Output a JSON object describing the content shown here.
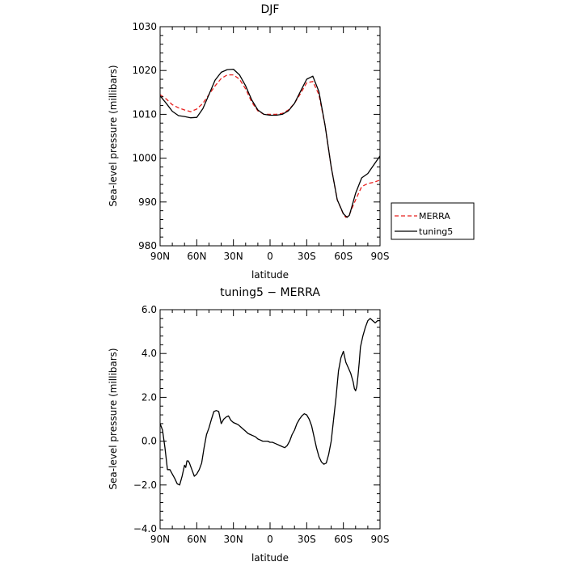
{
  "chart_data": [
    {
      "type": "line",
      "title": "DJF",
      "xlabel": "latitude",
      "ylabel": "Sea-level pressure (millibars)",
      "xlim": [
        90,
        -90
      ],
      "ylim": [
        980,
        1030
      ],
      "x_ticks": [
        90,
        60,
        30,
        0,
        -30,
        -60,
        -90
      ],
      "x_tick_labels": [
        "90N",
        "60N",
        "30N",
        "0",
        "30S",
        "60S",
        "90S"
      ],
      "y_ticks": [
        980,
        990,
        1000,
        1010,
        1020,
        1030
      ],
      "y_tick_labels": [
        "980",
        "990",
        "1000",
        "1010",
        "1020",
        "1030"
      ],
      "grid": false,
      "legend": "right",
      "series": [
        {
          "name": "MERRA",
          "color": "#e8201e",
          "dash": "dashed",
          "x": [
            90,
            85,
            80,
            75,
            70,
            65,
            60,
            55,
            50,
            45,
            40,
            35,
            30,
            25,
            20,
            15,
            10,
            5,
            0,
            -5,
            -10,
            -15,
            -20,
            -25,
            -30,
            -35,
            -40,
            -45,
            -50,
            -55,
            -60,
            -62,
            -65,
            -70,
            -75,
            -80,
            -85,
            -90
          ],
          "y": [
            1014.5,
            1013.5,
            1012.2,
            1011.5,
            1011,
            1010.6,
            1011.2,
            1012.5,
            1014.5,
            1016.5,
            1018.2,
            1019,
            1019,
            1018,
            1015.8,
            1012.8,
            1010.8,
            1010,
            1010,
            1010,
            1010.2,
            1011,
            1012.5,
            1014.8,
            1017.2,
            1017.5,
            1014.5,
            1007.5,
            998,
            990.5,
            987.2,
            986.5,
            987.2,
            990.5,
            993.5,
            994.2,
            994.5,
            995
          ]
        },
        {
          "name": "tuning5",
          "color": "#000000",
          "dash": "solid",
          "x": [
            90,
            85,
            80,
            75,
            70,
            65,
            60,
            55,
            50,
            45,
            40,
            35,
            30,
            25,
            20,
            15,
            10,
            5,
            0,
            -5,
            -10,
            -15,
            -20,
            -25,
            -30,
            -35,
            -40,
            -45,
            -50,
            -55,
            -60,
            -63,
            -65,
            -70,
            -75,
            -80,
            -85,
            -90
          ],
          "y": [
            1014.2,
            1012.5,
            1010.7,
            1009.7,
            1009.5,
            1009.2,
            1009.3,
            1011.3,
            1014.5,
            1017.8,
            1019.6,
            1020.2,
            1020.3,
            1019,
            1016.5,
            1013.3,
            1011,
            1010,
            1009.8,
            1009.8,
            1010,
            1010.8,
            1012.5,
            1015.3,
            1018,
            1018.7,
            1015.2,
            1007.5,
            998,
            990.5,
            987.3,
            986.5,
            987,
            992,
            995.5,
            996.5,
            998.5,
            1000.5
          ]
        }
      ]
    },
    {
      "type": "line",
      "title": "tuning5 − MERRA",
      "xlabel": "latitude",
      "ylabel": "Sea-level pressure (millibars)",
      "xlim": [
        90,
        -90
      ],
      "ylim": [
        -4,
        6
      ],
      "x_ticks": [
        90,
        60,
        30,
        0,
        -30,
        -60,
        -90
      ],
      "x_tick_labels": [
        "90N",
        "60N",
        "30N",
        "0",
        "30S",
        "60S",
        "90S"
      ],
      "y_ticks": [
        -4,
        -2,
        0,
        2,
        4,
        6
      ],
      "y_tick_labels": [
        "−4.0",
        "−2.0",
        "0.0",
        "2.0",
        "4.0",
        "6.0"
      ],
      "grid": false,
      "series": [
        {
          "color": "#000000",
          "x": [
            90,
            88,
            86,
            84,
            82,
            80,
            78,
            76,
            74,
            72,
            70,
            69,
            68,
            67,
            66,
            64,
            62,
            60,
            58,
            56,
            54,
            52,
            50,
            48,
            46,
            44,
            42,
            40,
            38,
            36,
            34,
            32,
            30,
            28,
            26,
            24,
            22,
            20,
            18,
            16,
            14,
            12,
            10,
            8,
            6,
            4,
            2,
            0,
            -2,
            -4,
            -6,
            -8,
            -10,
            -12,
            -14,
            -16,
            -18,
            -20,
            -22,
            -24,
            -26,
            -28,
            -30,
            -32,
            -34,
            -36,
            -38,
            -40,
            -42,
            -44,
            -46,
            -48,
            -50,
            -52,
            -54,
            -56,
            -58,
            -60,
            -62,
            -64,
            -66,
            -68,
            -69,
            -70,
            -71,
            -72,
            -73,
            -74,
            -76,
            -78,
            -80,
            -82,
            -84,
            -86,
            -88,
            -90
          ],
          "y": [
            0.8,
            0.5,
            -0.3,
            -1.3,
            -1.3,
            -1.5,
            -1.7,
            -1.95,
            -2.0,
            -1.6,
            -1.1,
            -1.2,
            -0.9,
            -0.9,
            -1.0,
            -1.3,
            -1.6,
            -1.5,
            -1.3,
            -1.0,
            -0.3,
            0.3,
            0.6,
            1.0,
            1.35,
            1.4,
            1.35,
            0.8,
            1.0,
            1.1,
            1.15,
            0.95,
            0.85,
            0.8,
            0.75,
            0.65,
            0.55,
            0.45,
            0.35,
            0.3,
            0.25,
            0.2,
            0.1,
            0.05,
            0.0,
            0.0,
            0.0,
            -0.05,
            -0.05,
            -0.1,
            -0.15,
            -0.2,
            -0.25,
            -0.3,
            -0.2,
            0.0,
            0.3,
            0.5,
            0.8,
            1.0,
            1.15,
            1.25,
            1.2,
            1.0,
            0.7,
            0.2,
            -0.3,
            -0.7,
            -0.95,
            -1.05,
            -1.0,
            -0.6,
            0.0,
            1.0,
            2.0,
            3.2,
            3.8,
            4.1,
            3.6,
            3.35,
            3.1,
            2.7,
            2.4,
            2.3,
            2.5,
            3.0,
            3.6,
            4.3,
            4.8,
            5.2,
            5.5,
            5.6,
            5.5,
            5.4,
            5.5,
            5.5
          ]
        }
      ]
    }
  ]
}
